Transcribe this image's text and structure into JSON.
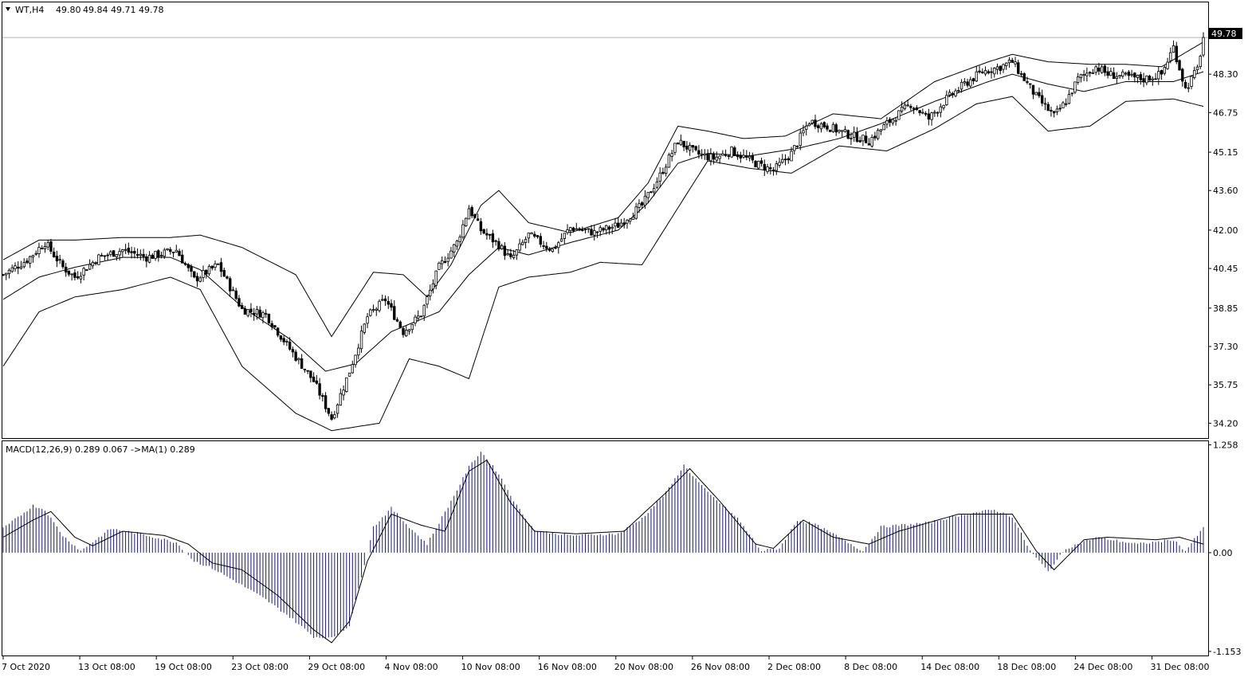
{
  "main_header": {
    "symbol": "WT,H4",
    "open": "49.80",
    "high": "49.84",
    "low": "49.71",
    "close": "49.78"
  },
  "macd_header": {
    "label": "MACD(12,26,9) 0.289 0.067  ->MA(1) 0.289"
  },
  "current_price_tag": "49.78",
  "colors": {
    "background": "#ffffff",
    "line": "#000000",
    "macd_hist": "#1a1a6e",
    "price_tag_bg": "#000000",
    "price_tag_fg": "#ffffff"
  },
  "chart_data": [
    {
      "type": "candlestick",
      "title": "WT,H4",
      "indicator": "Bollinger Bands",
      "ylim": [
        33.6,
        51.2
      ],
      "y_ticks": [
        "49.78",
        "48.30",
        "46.75",
        "45.15",
        "43.60",
        "42.00",
        "40.45",
        "38.85",
        "37.30",
        "35.75",
        "34.20"
      ],
      "x_ticks": [
        "7 Oct 2020",
        "13 Oct 08:00",
        "19 Oct 08:00",
        "23 Oct 08:00",
        "29 Oct 08:00",
        "4 Nov 08:00",
        "10 Nov 08:00",
        "16 Nov 08:00",
        "20 Nov 08:00",
        "26 Nov 08:00",
        "2 Dec 08:00",
        "8 Dec 08:00",
        "14 Dec 08:00",
        "18 Dec 08:00",
        "24 Dec 08:00",
        "31 Dec 08:00"
      ],
      "close_anchor_series": [
        [
          0,
          40.2
        ],
        [
          8,
          40.8
        ],
        [
          14,
          41.5
        ],
        [
          20,
          40.5
        ],
        [
          24,
          40.1
        ],
        [
          32,
          40.9
        ],
        [
          40,
          41.2
        ],
        [
          48,
          40.9
        ],
        [
          58,
          41.2
        ],
        [
          64,
          40.0
        ],
        [
          72,
          40.6
        ],
        [
          80,
          38.8
        ],
        [
          88,
          38.6
        ],
        [
          96,
          37.2
        ],
        [
          104,
          35.9
        ],
        [
          110,
          34.4
        ],
        [
          116,
          36.3
        ],
        [
          122,
          38.5
        ],
        [
          128,
          39.2
        ],
        [
          134,
          37.9
        ],
        [
          140,
          38.6
        ],
        [
          146,
          40.5
        ],
        [
          152,
          41.5
        ],
        [
          156,
          42.9
        ],
        [
          160,
          42.0
        ],
        [
          166,
          41.4
        ],
        [
          170,
          40.8
        ],
        [
          176,
          41.8
        ],
        [
          184,
          41.2
        ],
        [
          190,
          42.1
        ],
        [
          198,
          41.9
        ],
        [
          206,
          42.2
        ],
        [
          214,
          43.0
        ],
        [
          220,
          44.2
        ],
        [
          226,
          45.6
        ],
        [
          232,
          45.1
        ],
        [
          238,
          44.9
        ],
        [
          244,
          45.2
        ],
        [
          252,
          44.7
        ],
        [
          258,
          44.4
        ],
        [
          264,
          45.1
        ],
        [
          270,
          46.4
        ],
        [
          276,
          46.2
        ],
        [
          282,
          45.9
        ],
        [
          290,
          45.6
        ],
        [
          296,
          46.3
        ],
        [
          304,
          47.1
        ],
        [
          310,
          46.5
        ],
        [
          316,
          47.3
        ],
        [
          322,
          47.9
        ],
        [
          328,
          48.4
        ],
        [
          334,
          48.6
        ],
        [
          338,
          48.8
        ],
        [
          342,
          48.1
        ],
        [
          346,
          47.4
        ],
        [
          352,
          46.6
        ],
        [
          356,
          47.2
        ],
        [
          360,
          48.1
        ],
        [
          366,
          48.6
        ],
        [
          370,
          48.3
        ],
        [
          376,
          48.2
        ],
        [
          382,
          48.1
        ],
        [
          388,
          48.3
        ],
        [
          392,
          49.4
        ],
        [
          396,
          47.7
        ],
        [
          400,
          48.5
        ],
        [
          402,
          49.78
        ]
      ],
      "bollinger": {
        "middle": [
          [
            0,
            39.2
          ],
          [
            12,
            40.1
          ],
          [
            24,
            40.5
          ],
          [
            40,
            40.9
          ],
          [
            56,
            40.9
          ],
          [
            66,
            40.4
          ],
          [
            80,
            38.9
          ],
          [
            96,
            37.6
          ],
          [
            108,
            36.3
          ],
          [
            118,
            36.6
          ],
          [
            130,
            37.9
          ],
          [
            146,
            38.7
          ],
          [
            156,
            40.2
          ],
          [
            166,
            41.3
          ],
          [
            176,
            41.0
          ],
          [
            190,
            41.5
          ],
          [
            206,
            42.0
          ],
          [
            216,
            43.1
          ],
          [
            226,
            44.7
          ],
          [
            236,
            45.1
          ],
          [
            250,
            45.0
          ],
          [
            266,
            45.3
          ],
          [
            280,
            45.7
          ],
          [
            294,
            46.3
          ],
          [
            312,
            47.2
          ],
          [
            330,
            48.0
          ],
          [
            338,
            48.3
          ],
          [
            350,
            47.9
          ],
          [
            362,
            47.6
          ],
          [
            376,
            48.0
          ],
          [
            392,
            48.0
          ],
          [
            402,
            48.4
          ]
        ],
        "upper": [
          [
            0,
            40.8
          ],
          [
            12,
            41.6
          ],
          [
            24,
            41.6
          ],
          [
            40,
            41.7
          ],
          [
            56,
            41.7
          ],
          [
            66,
            41.8
          ],
          [
            80,
            41.3
          ],
          [
            98,
            40.2
          ],
          [
            110,
            37.7
          ],
          [
            124,
            40.3
          ],
          [
            134,
            40.2
          ],
          [
            142,
            39.3
          ],
          [
            150,
            40.6
          ],
          [
            160,
            43.0
          ],
          [
            166,
            43.6
          ],
          [
            176,
            42.3
          ],
          [
            190,
            41.9
          ],
          [
            206,
            42.5
          ],
          [
            216,
            43.9
          ],
          [
            226,
            46.2
          ],
          [
            236,
            46.0
          ],
          [
            248,
            45.7
          ],
          [
            262,
            45.8
          ],
          [
            278,
            46.7
          ],
          [
            294,
            46.5
          ],
          [
            312,
            48.0
          ],
          [
            330,
            48.8
          ],
          [
            338,
            49.1
          ],
          [
            350,
            48.8
          ],
          [
            364,
            48.7
          ],
          [
            376,
            48.7
          ],
          [
            388,
            48.6
          ],
          [
            402,
            49.6
          ]
        ],
        "lower": [
          [
            0,
            36.5
          ],
          [
            12,
            38.7
          ],
          [
            24,
            39.3
          ],
          [
            40,
            39.6
          ],
          [
            56,
            40.1
          ],
          [
            66,
            39.6
          ],
          [
            80,
            36.5
          ],
          [
            98,
            34.6
          ],
          [
            110,
            33.9
          ],
          [
            126,
            34.2
          ],
          [
            136,
            36.8
          ],
          [
            146,
            36.5
          ],
          [
            156,
            36.0
          ],
          [
            166,
            39.7
          ],
          [
            176,
            40.1
          ],
          [
            190,
            40.3
          ],
          [
            200,
            40.7
          ],
          [
            214,
            40.6
          ],
          [
            226,
            42.9
          ],
          [
            236,
            44.8
          ],
          [
            250,
            44.5
          ],
          [
            264,
            44.3
          ],
          [
            280,
            45.4
          ],
          [
            296,
            45.2
          ],
          [
            312,
            46.1
          ],
          [
            326,
            47.1
          ],
          [
            338,
            47.4
          ],
          [
            350,
            46.0
          ],
          [
            364,
            46.2
          ],
          [
            376,
            47.2
          ],
          [
            392,
            47.3
          ],
          [
            402,
            47.0
          ]
        ]
      }
    },
    {
      "type": "bar",
      "title": "MACD(12,26,9)",
      "ylim": [
        -1.2,
        1.3
      ],
      "y_ticks": [
        "1.258",
        "0.00",
        "-1.153"
      ],
      "macd_hist_anchors": [
        [
          0,
          0.28
        ],
        [
          10,
          0.55
        ],
        [
          14,
          0.5
        ],
        [
          20,
          0.2
        ],
        [
          26,
          0.02
        ],
        [
          36,
          0.28
        ],
        [
          46,
          0.22
        ],
        [
          58,
          0.12
        ],
        [
          64,
          -0.1
        ],
        [
          70,
          -0.18
        ],
        [
          80,
          -0.38
        ],
        [
          88,
          -0.55
        ],
        [
          96,
          -0.75
        ],
        [
          104,
          -0.98
        ],
        [
          110,
          -1.0
        ],
        [
          116,
          -0.85
        ],
        [
          124,
          0.3
        ],
        [
          130,
          0.52
        ],
        [
          136,
          0.3
        ],
        [
          142,
          0.1
        ],
        [
          150,
          0.6
        ],
        [
          156,
          1.0
        ],
        [
          160,
          1.18
        ],
        [
          166,
          0.92
        ],
        [
          172,
          0.55
        ],
        [
          178,
          0.26
        ],
        [
          190,
          0.2
        ],
        [
          206,
          0.22
        ],
        [
          214,
          0.4
        ],
        [
          222,
          0.7
        ],
        [
          228,
          1.02
        ],
        [
          236,
          0.7
        ],
        [
          246,
          0.4
        ],
        [
          254,
          0.02
        ],
        [
          260,
          0.05
        ],
        [
          266,
          0.38
        ],
        [
          272,
          0.33
        ],
        [
          280,
          0.18
        ],
        [
          288,
          0.02
        ],
        [
          294,
          0.3
        ],
        [
          310,
          0.35
        ],
        [
          322,
          0.45
        ],
        [
          332,
          0.5
        ],
        [
          338,
          0.42
        ],
        [
          344,
          0.02
        ],
        [
          350,
          -0.22
        ],
        [
          356,
          0.05
        ],
        [
          366,
          0.18
        ],
        [
          380,
          0.1
        ],
        [
          392,
          0.15
        ],
        [
          396,
          0.02
        ],
        [
          402,
          0.29
        ]
      ],
      "signal_anchors": [
        [
          0,
          0.18
        ],
        [
          10,
          0.38
        ],
        [
          16,
          0.48
        ],
        [
          24,
          0.18
        ],
        [
          30,
          0.08
        ],
        [
          40,
          0.25
        ],
        [
          54,
          0.2
        ],
        [
          62,
          0.1
        ],
        [
          70,
          -0.12
        ],
        [
          80,
          -0.2
        ],
        [
          92,
          -0.5
        ],
        [
          104,
          -0.9
        ],
        [
          110,
          -1.05
        ],
        [
          116,
          -0.8
        ],
        [
          122,
          -0.1
        ],
        [
          130,
          0.45
        ],
        [
          140,
          0.32
        ],
        [
          148,
          0.25
        ],
        [
          156,
          0.95
        ],
        [
          162,
          1.08
        ],
        [
          170,
          0.58
        ],
        [
          178,
          0.25
        ],
        [
          192,
          0.22
        ],
        [
          208,
          0.25
        ],
        [
          222,
          0.7
        ],
        [
          230,
          0.98
        ],
        [
          240,
          0.6
        ],
        [
          252,
          0.1
        ],
        [
          258,
          0.05
        ],
        [
          268,
          0.38
        ],
        [
          278,
          0.18
        ],
        [
          290,
          0.1
        ],
        [
          300,
          0.25
        ],
        [
          320,
          0.45
        ],
        [
          338,
          0.45
        ],
        [
          346,
          0.02
        ],
        [
          352,
          -0.2
        ],
        [
          362,
          0.15
        ],
        [
          370,
          0.18
        ],
        [
          386,
          0.15
        ],
        [
          394,
          0.18
        ],
        [
          402,
          0.1
        ]
      ]
    }
  ]
}
